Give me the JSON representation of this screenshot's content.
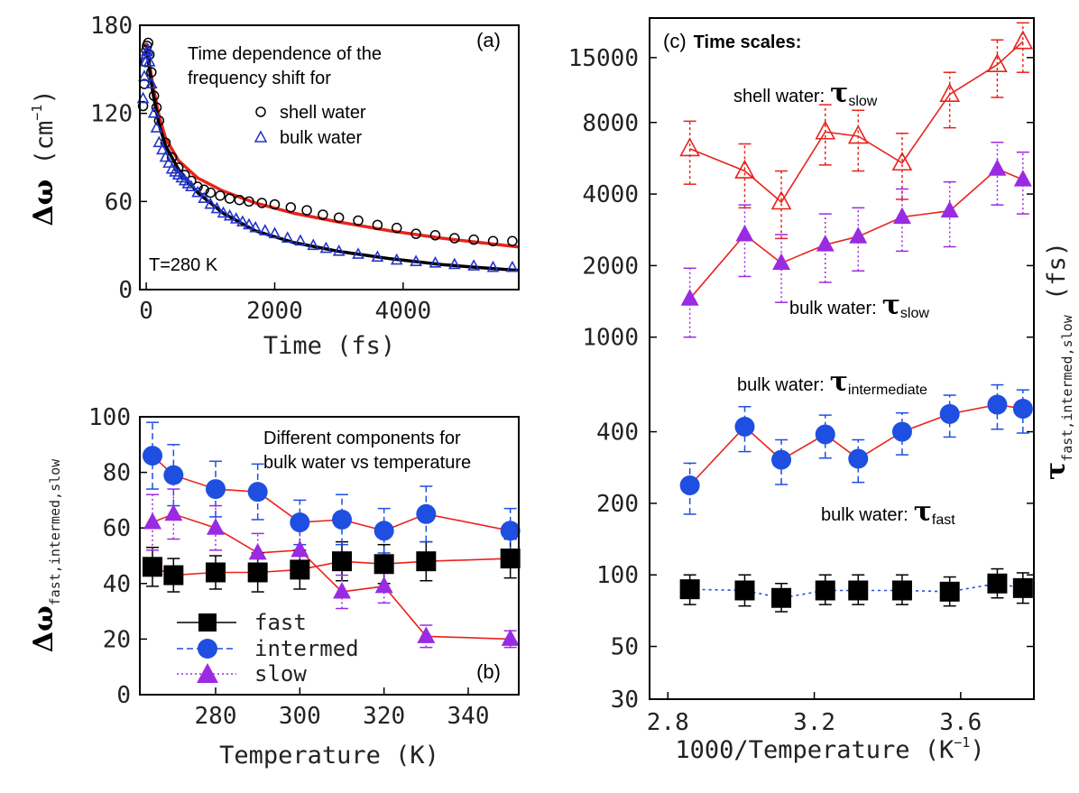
{
  "chart_data": [
    {
      "panel": "(a)",
      "type": "scatter",
      "xlabel": "Time (fs)",
      "ylabel_symbol": "Δω",
      "ylabel_unit_open": " (cm",
      "ylabel_unit_exp": "−1",
      "ylabel_unit_close": ")",
      "xlim": [
        -100,
        5800
      ],
      "ylim": [
        0,
        180
      ],
      "xticks": [
        0,
        2000,
        4000
      ],
      "yticks": [
        0,
        60,
        120,
        180
      ],
      "annotation": [
        "Time dependence of the",
        "frequency shift for"
      ],
      "temperature_label": "T=280 K",
      "series": [
        {
          "name": "shell water",
          "marker": "circle",
          "color": "#000000",
          "x": [
            -50,
            -30,
            -10,
            0,
            10,
            30,
            50,
            80,
            120,
            160,
            200,
            300,
            400,
            500,
            600,
            700,
            800,
            900,
            1000,
            1150,
            1300,
            1450,
            1600,
            1800,
            2000,
            2250,
            2500,
            2750,
            3000,
            3300,
            3600,
            3900,
            4200,
            4500,
            4800,
            5100,
            5400,
            5700
          ],
          "y": [
            125,
            140,
            155,
            163,
            166,
            168,
            160,
            148,
            132,
            124,
            115,
            100,
            90,
            83,
            78,
            74,
            70,
            68,
            66,
            64,
            62,
            61,
            60,
            59,
            58,
            56,
            54,
            51,
            49,
            47,
            44,
            42,
            38,
            37,
            35,
            34,
            33,
            33
          ]
        },
        {
          "name": "bulk water",
          "marker": "triangle",
          "color": "#2233cc",
          "x": [
            -50,
            -30,
            -10,
            0,
            10,
            30,
            50,
            80,
            120,
            160,
            200,
            250,
            300,
            350,
            400,
            450,
            500,
            550,
            600,
            650,
            700,
            800,
            900,
            1000,
            1100,
            1200,
            1300,
            1400,
            1500,
            1600,
            1700,
            1850,
            2000,
            2200,
            2400,
            2600,
            2800,
            3000,
            3300,
            3600,
            3900,
            4200,
            4500,
            4800,
            5100,
            5400,
            5700
          ],
          "y": [
            130,
            145,
            155,
            160,
            162,
            163,
            155,
            140,
            120,
            110,
            100,
            95,
            90,
            86,
            82,
            80,
            78,
            76,
            74,
            72,
            70,
            66,
            62,
            58,
            55,
            52,
            50,
            48,
            46,
            44,
            42,
            40,
            38,
            35,
            33,
            30,
            28,
            26,
            24,
            22,
            20,
            19,
            18,
            17,
            16,
            15,
            15
          ]
        }
      ],
      "fits": [
        {
          "color": "#e8231b",
          "x": [
            0,
            100,
            200,
            300,
            500,
            800,
            1200,
            1700,
            2300,
            3000,
            3800,
            4600,
            5200,
            5800
          ],
          "y": [
            168,
            140,
            118,
            103,
            88,
            76,
            67,
            59,
            52,
            46,
            40,
            35,
            32,
            29
          ]
        },
        {
          "color": "#000000",
          "x": [
            0,
            100,
            200,
            300,
            500,
            800,
            1200,
            1700,
            2300,
            3000,
            3800,
            4600,
            5200,
            5800
          ],
          "y": [
            165,
            135,
            112,
            98,
            82,
            66,
            52,
            40,
            32,
            26,
            21,
            17,
            15,
            13
          ]
        }
      ]
    },
    {
      "panel": "(b)",
      "type": "scatter",
      "xlabel": "Temperature (K)",
      "ylabel_symbol": "Δω",
      "ylabel_sub": "fast,intermed,slow",
      "xlim": [
        262,
        352
      ],
      "ylim": [
        0,
        100
      ],
      "xticks": [
        280,
        300,
        320,
        340
      ],
      "yticks": [
        0,
        20,
        40,
        60,
        80,
        100
      ],
      "annotation": [
        "Different components for",
        "bulk water vs temperature"
      ],
      "series": [
        {
          "name": "fast",
          "marker": "square",
          "color": "#000000",
          "x": [
            265,
            270,
            280,
            290,
            300,
            310,
            320,
            330,
            350
          ],
          "y": [
            46,
            43,
            44,
            44,
            45,
            48,
            47,
            48,
            49
          ],
          "err": [
            7,
            6,
            6,
            7,
            7,
            7,
            7,
            7,
            7
          ]
        },
        {
          "name": "intermed",
          "marker": "circle",
          "color": "#1f4fe0",
          "x": [
            265,
            270,
            280,
            290,
            300,
            310,
            320,
            330,
            350
          ],
          "y": [
            86,
            79,
            74,
            73,
            62,
            63,
            59,
            65,
            59
          ],
          "err": [
            12,
            11,
            10,
            10,
            8,
            9,
            8,
            10,
            8
          ]
        },
        {
          "name": "slow",
          "marker": "triangle",
          "color": "#9a2be2",
          "x": [
            265,
            270,
            280,
            290,
            300,
            310,
            320,
            330,
            350
          ],
          "y": [
            62,
            65,
            60,
            51,
            52,
            37,
            39,
            21,
            20
          ],
          "err": [
            10,
            9,
            8,
            7,
            8,
            6,
            6,
            4,
            3
          ]
        }
      ],
      "fits": [
        {
          "color": "#e8231b",
          "x": [
            265,
            270,
            280,
            290,
            300,
            310,
            320,
            330,
            350
          ],
          "y": [
            46,
            43,
            44,
            44,
            45,
            48,
            47,
            48,
            49
          ]
        },
        {
          "color": "#e8231b",
          "x": [
            265,
            270,
            280,
            290,
            300,
            310,
            320,
            330,
            350
          ],
          "y": [
            86,
            79,
            74,
            73,
            62,
            63,
            59,
            65,
            59
          ]
        },
        {
          "color": "#e8231b",
          "x": [
            265,
            270,
            280,
            290,
            300,
            310,
            320,
            330,
            350
          ],
          "y": [
            62,
            65,
            60,
            51,
            52,
            37,
            39,
            21,
            20
          ]
        }
      ]
    },
    {
      "panel": "(c)",
      "type": "scatter",
      "title": "Time scales:",
      "xlabel_open": "1000/Temperature (K",
      "xlabel_exp": "−1",
      "xlabel_close": ")",
      "ylabel_symbol": "τ",
      "ylabel_sub": "fast,intermed,slow",
      "ylabel_unit": " (fs)",
      "yscale": "log",
      "xlim": [
        2.75,
        3.8
      ],
      "ylim": [
        30,
        22000
      ],
      "xticks": [
        "2.8",
        "3.2",
        "3.6"
      ],
      "yticks": [
        30,
        50,
        100,
        200,
        400,
        1000,
        2000,
        4000,
        8000,
        15000
      ],
      "labels": [
        {
          "prefix": "shell water:",
          "sym": "τ",
          "sub": "slow"
        },
        {
          "prefix": "bulk water:",
          "sym": "τ",
          "sub": "slow"
        },
        {
          "prefix": "bulk water:",
          "sym": "τ",
          "sub": "intermediate"
        },
        {
          "prefix": "bulk water:",
          "sym": "τ",
          "sub": "fast"
        }
      ],
      "series": [
        {
          "name": "shell water slow",
          "marker": "triangle-open",
          "color": "#e8231b",
          "line": "#e8231b",
          "x": [
            2.86,
            3.01,
            3.11,
            3.23,
            3.32,
            3.44,
            3.57,
            3.7,
            3.77
          ],
          "y": [
            6200,
            5000,
            3700,
            7300,
            7000,
            5400,
            10500,
            14000,
            17500
          ],
          "err_lo": [
            4400,
            3500,
            2600,
            5300,
            5000,
            3800,
            7600,
            10200,
            13000
          ],
          "err_hi": [
            8100,
            6500,
            5000,
            9500,
            9000,
            7200,
            13000,
            17800,
            21000
          ]
        },
        {
          "name": "bulk water slow",
          "marker": "triangle",
          "color": "#9a2be2",
          "line": "#e8231b",
          "x": [
            2.86,
            3.01,
            3.11,
            3.23,
            3.32,
            3.44,
            3.57,
            3.7,
            3.77
          ],
          "y": [
            1450,
            2700,
            2050,
            2450,
            2650,
            3200,
            3400,
            5100,
            4600
          ],
          "err_lo": [
            1000,
            1800,
            1400,
            1700,
            1900,
            2300,
            2400,
            3600,
            3300
          ],
          "err_hi": [
            1950,
            3600,
            2700,
            3300,
            3500,
            4200,
            4500,
            6600,
            6000
          ]
        },
        {
          "name": "bulk water intermediate",
          "marker": "circle",
          "color": "#1f4fe0",
          "line": "#e8231b",
          "x": [
            2.86,
            3.01,
            3.11,
            3.23,
            3.32,
            3.44,
            3.57,
            3.7,
            3.77
          ],
          "y": [
            238,
            420,
            305,
            390,
            308,
            400,
            475,
            520,
            500
          ],
          "err_lo": [
            180,
            330,
            240,
            310,
            245,
            320,
            380,
            410,
            395
          ],
          "err_hi": [
            295,
            510,
            370,
            470,
            370,
            480,
            570,
            630,
            600
          ]
        },
        {
          "name": "bulk water fast",
          "marker": "square",
          "color": "#000000",
          "line": "#1f4fe0",
          "x": [
            2.86,
            3.01,
            3.11,
            3.23,
            3.32,
            3.44,
            3.57,
            3.7,
            3.77
          ],
          "y": [
            87,
            86,
            80,
            86,
            86,
            86,
            85,
            92,
            88
          ],
          "err_lo": [
            75,
            74,
            70,
            75,
            75,
            75,
            74,
            80,
            76
          ],
          "err_hi": [
            100,
            100,
            92,
            100,
            100,
            100,
            98,
            106,
            102
          ]
        }
      ]
    }
  ]
}
